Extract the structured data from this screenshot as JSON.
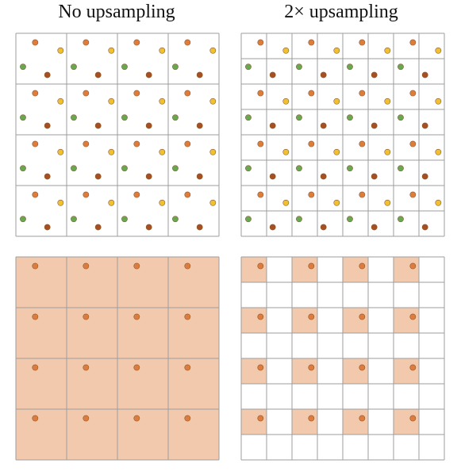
{
  "titles": {
    "left": "No upsampling",
    "right": "2× upsampling"
  },
  "colors": {
    "grid_line": "#9e9e9e",
    "pixel_fill": "#f2c9ad",
    "dot_orange": "#e07b3c",
    "dot_yellow": "#f0c030",
    "dot_green": "#6aa84f",
    "dot_brown": "#a5501e",
    "dot_stroke": "#8a5a30"
  },
  "panels": [
    {
      "id": "top-left",
      "grid_cells": 4,
      "pattern": "sample-points",
      "shaded": "none"
    },
    {
      "id": "top-right",
      "grid_cells": 8,
      "pattern": "sample-points",
      "shaded": "none"
    },
    {
      "id": "bottom-left",
      "grid_cells": 4,
      "pattern": "single-orange-point",
      "shaded": "all"
    },
    {
      "id": "bottom-right",
      "grid_cells": 8,
      "pattern": "single-orange-point",
      "shaded": "even-row-even-col"
    }
  ]
}
